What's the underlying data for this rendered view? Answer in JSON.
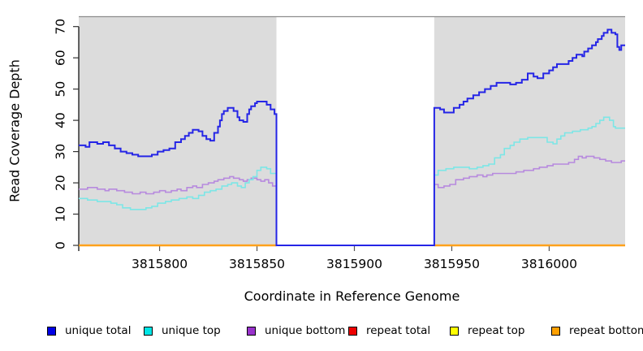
{
  "figure": {
    "y_axis_label": "Read Coverage Depth",
    "x_axis_label": "Coordinate in Reference Genome"
  },
  "legend": {
    "items": [
      {
        "label": "unique total",
        "color": "#0000e6"
      },
      {
        "label": "unique top",
        "color": "#00e6e6"
      },
      {
        "label": "unique bottom",
        "color": "#9932cc"
      },
      {
        "label": "repeat total",
        "color": "#ee0000"
      },
      {
        "label": "repeat top",
        "color": "#ffff00"
      },
      {
        "label": "repeat bottom",
        "color": "#ffa000"
      }
    ]
  },
  "chart_data": {
    "type": "line",
    "subtype": "step",
    "title": "",
    "xlabel": "Coordinate in Reference Genome",
    "ylabel": "Read Coverage Depth",
    "xlim": [
      3815758.5,
      3816039
    ],
    "ylim": [
      0,
      73.3
    ],
    "x_ticks": [
      3815800,
      3815850,
      3815900,
      3815950,
      3816000
    ],
    "y_ticks": [
      0,
      10,
      20,
      30,
      40,
      50,
      60,
      70
    ],
    "grid": false,
    "legend_position": "bottom",
    "plot_background": "#dcdcdc",
    "frame_color": "#8d8d8d",
    "gap_region": {
      "from": 3815860,
      "to": 3815941,
      "color": "#ffffff"
    },
    "series": [
      {
        "name": "repeat total",
        "color": "#ee0000",
        "width": 2,
        "segments": [
          {
            "points": [
              [
                3815758.5,
                0
              ]
            ],
            "x_end": 3815860
          },
          {
            "points": [
              [
                3815941,
                0
              ]
            ],
            "x_end": 3816039
          }
        ]
      },
      {
        "name": "repeat top",
        "color": "#ffff00",
        "width": 2,
        "segments": [
          {
            "points": [
              [
                3815758.5,
                0
              ]
            ],
            "x_end": 3815860
          },
          {
            "points": [
              [
                3815941,
                0
              ]
            ],
            "x_end": 3816039
          }
        ]
      },
      {
        "name": "repeat bottom",
        "color": "#ffa11c",
        "width": 2.4,
        "segments": [
          {
            "points": [
              [
                3815758.5,
                0
              ]
            ],
            "x_end": 3815860
          },
          {
            "points": [
              [
                3815941,
                0
              ]
            ],
            "x_end": 3816039
          }
        ]
      },
      {
        "name": "unique bottom",
        "color": "#b78ade",
        "width": 1.6,
        "segments": [
          {
            "points": [
              [
                3815758.5,
                18
              ],
              [
                3815763,
                18.5
              ],
              [
                3815768,
                18
              ],
              [
                3815772,
                17.5
              ],
              [
                3815774,
                18
              ],
              [
                3815778,
                17.5
              ],
              [
                3815782,
                17
              ],
              [
                3815786,
                16.5
              ],
              [
                3815790,
                17
              ],
              [
                3815793,
                16.5
              ],
              [
                3815797,
                17
              ],
              [
                3815800,
                17.5
              ],
              [
                3815803,
                17
              ],
              [
                3815806,
                17.5
              ],
              [
                3815809,
                18
              ],
              [
                3815811,
                17.5
              ],
              [
                3815814,
                18.5
              ],
              [
                3815817,
                19
              ],
              [
                3815819,
                18.5
              ],
              [
                3815822,
                19.5
              ],
              [
                3815825,
                20
              ],
              [
                3815828,
                20.5
              ],
              [
                3815830,
                21
              ],
              [
                3815833,
                21.5
              ],
              [
                3815836,
                22
              ],
              [
                3815838,
                21.5
              ],
              [
                3815841,
                21
              ],
              [
                3815843,
                20.5
              ],
              [
                3815845,
                21
              ],
              [
                3815847,
                21.5
              ],
              [
                3815850,
                21
              ],
              [
                3815852,
                20.5
              ],
              [
                3815854,
                21
              ],
              [
                3815856,
                20
              ],
              [
                3815858,
                19
              ],
              [
                3815860,
                0
              ],
              [
                3815941,
                19.5
              ],
              [
                3815943,
                18.5
              ],
              [
                3815946,
                19
              ],
              [
                3815949,
                19.5
              ],
              [
                3815952,
                21
              ],
              [
                3815956,
                21.5
              ],
              [
                3815959,
                22
              ],
              [
                3815963,
                22.5
              ],
              [
                3815966,
                22
              ],
              [
                3815968,
                22.5
              ],
              [
                3815971,
                23
              ],
              [
                3815983,
                23.5
              ],
              [
                3815987,
                24
              ],
              [
                3815992,
                24.5
              ],
              [
                3815995,
                25
              ],
              [
                3815999,
                25.5
              ],
              [
                3816002,
                26
              ],
              [
                3816010,
                26.5
              ],
              [
                3816013,
                27.5
              ],
              [
                3816015,
                28.5
              ],
              [
                3816017,
                28
              ],
              [
                3816019,
                28.5
              ],
              [
                3816023,
                28
              ],
              [
                3816026,
                27.5
              ],
              [
                3816029,
                27
              ],
              [
                3816032,
                26.5
              ],
              [
                3816037,
                27
              ]
            ],
            "x_end": 3816039
          }
        ]
      },
      {
        "name": "unique top",
        "color": "#7de6e6",
        "width": 1.6,
        "segments": [
          {
            "points": [
              [
                3815758.5,
                15
              ],
              [
                3815763,
                14.5
              ],
              [
                3815768,
                14
              ],
              [
                3815775,
                13.5
              ],
              [
                3815778,
                13
              ],
              [
                3815781,
                12
              ],
              [
                3815785,
                11.5
              ],
              [
                3815793,
                12
              ],
              [
                3815796,
                12.5
              ],
              [
                3815799,
                13.5
              ],
              [
                3815803,
                14
              ],
              [
                3815806,
                14.5
              ],
              [
                3815810,
                15
              ],
              [
                3815814,
                15.5
              ],
              [
                3815817,
                15
              ],
              [
                3815820,
                16
              ],
              [
                3815823,
                17
              ],
              [
                3815826,
                17.5
              ],
              [
                3815829,
                18
              ],
              [
                3815832,
                19
              ],
              [
                3815835,
                19.5
              ],
              [
                3815837,
                20
              ],
              [
                3815840,
                19
              ],
              [
                3815842,
                18.5
              ],
              [
                3815844,
                20
              ],
              [
                3815846,
                21
              ],
              [
                3815848,
                22
              ],
              [
                3815850,
                24
              ],
              [
                3815852,
                25
              ],
              [
                3815855,
                24.5
              ],
              [
                3815857,
                23
              ],
              [
                3815860,
                0
              ],
              [
                3815941,
                22.5
              ],
              [
                3815943,
                24
              ],
              [
                3815947,
                24.5
              ],
              [
                3815951,
                25
              ],
              [
                3815959,
                24.5
              ],
              [
                3815963,
                25
              ],
              [
                3815966,
                25.5
              ],
              [
                3815969,
                26
              ],
              [
                3815972,
                28
              ],
              [
                3815975,
                29
              ],
              [
                3815977,
                31
              ],
              [
                3815980,
                32
              ],
              [
                3815982,
                33
              ],
              [
                3815985,
                34
              ],
              [
                3815989,
                34.5
              ],
              [
                3815999,
                33
              ],
              [
                3816002,
                32.5
              ],
              [
                3816004,
                34
              ],
              [
                3816006,
                35
              ],
              [
                3816008,
                36
              ],
              [
                3816012,
                36.5
              ],
              [
                3816016,
                37
              ],
              [
                3816020,
                37.5
              ],
              [
                3816022,
                38
              ],
              [
                3816024,
                39
              ],
              [
                3816026,
                40
              ],
              [
                3816028,
                41
              ],
              [
                3816031,
                40
              ],
              [
                3816033,
                38
              ],
              [
                3816034,
                37.5
              ]
            ],
            "x_end": 3816039
          }
        ]
      },
      {
        "name": "unique total",
        "color": "#2525e6",
        "width": 2,
        "segments": [
          {
            "points": [
              [
                3815758.5,
                32
              ],
              [
                3815762,
                31.5
              ],
              [
                3815764,
                33
              ],
              [
                3815768,
                32.5
              ],
              [
                3815771,
                33
              ],
              [
                3815774,
                32
              ],
              [
                3815777,
                31
              ],
              [
                3815780,
                30
              ],
              [
                3815783,
                29.5
              ],
              [
                3815786,
                29
              ],
              [
                3815789,
                28.5
              ],
              [
                3815796,
                29
              ],
              [
                3815799,
                30
              ],
              [
                3815802,
                30.5
              ],
              [
                3815805,
                31
              ],
              [
                3815808,
                33
              ],
              [
                3815811,
                34
              ],
              [
                3815813,
                35
              ],
              [
                3815815,
                36
              ],
              [
                3815817,
                37
              ],
              [
                3815820,
                36.5
              ],
              [
                3815822,
                35
              ],
              [
                3815824,
                34
              ],
              [
                3815826,
                33.5
              ],
              [
                3815828,
                36
              ],
              [
                3815830,
                38
              ],
              [
                3815831,
                40
              ],
              [
                3815832,
                42
              ],
              [
                3815833,
                43
              ],
              [
                3815835,
                44
              ],
              [
                3815838,
                43
              ],
              [
                3815840,
                41
              ],
              [
                3815841,
                40
              ],
              [
                3815843,
                39.5
              ],
              [
                3815845,
                42
              ],
              [
                3815846,
                43.5
              ],
              [
                3815847,
                44.5
              ],
              [
                3815849,
                45.5
              ],
              [
                3815850,
                46
              ],
              [
                3815855,
                45
              ],
              [
                3815857,
                43.5
              ],
              [
                3815859,
                42
              ],
              [
                3815860,
                0
              ],
              [
                3815941,
                44
              ],
              [
                3815944,
                43.5
              ],
              [
                3815946,
                42.5
              ],
              [
                3815951,
                44
              ],
              [
                3815954,
                45
              ],
              [
                3815956,
                46
              ],
              [
                3815958,
                47
              ],
              [
                3815961,
                48
              ],
              [
                3815964,
                49
              ],
              [
                3815967,
                50
              ],
              [
                3815970,
                51
              ],
              [
                3815973,
                52
              ],
              [
                3815980,
                51.5
              ],
              [
                3815983,
                52
              ],
              [
                3815986,
                53
              ],
              [
                3815989,
                55
              ],
              [
                3815992,
                54
              ],
              [
                3815994,
                53.5
              ],
              [
                3815997,
                55
              ],
              [
                3816000,
                56
              ],
              [
                3816002,
                57
              ],
              [
                3816004,
                58
              ],
              [
                3816010,
                59
              ],
              [
                3816012,
                60
              ],
              [
                3816014,
                61
              ],
              [
                3816017,
                60.5
              ],
              [
                3816018,
                62
              ],
              [
                3816020,
                63
              ],
              [
                3816022,
                64
              ],
              [
                3816024,
                65
              ],
              [
                3816025,
                66
              ],
              [
                3816027,
                67
              ],
              [
                3816028,
                68
              ],
              [
                3816030,
                69
              ],
              [
                3816032,
                68
              ],
              [
                3816034,
                67.5
              ],
              [
                3816035,
                63.5
              ],
              [
                3816036,
                62.5
              ],
              [
                3816037,
                64
              ]
            ],
            "x_end": 3816039
          }
        ]
      }
    ]
  }
}
